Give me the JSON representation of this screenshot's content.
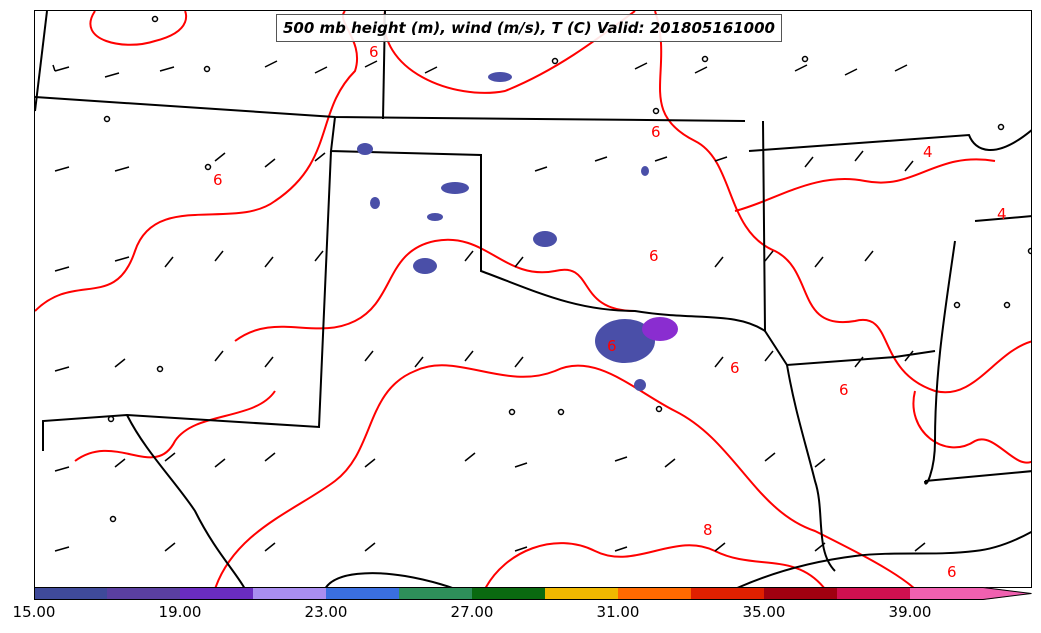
{
  "title": "500 mb height (m), wind (m/s), T (C) Valid: 201805161000",
  "contour_labels": [
    "6",
    "6",
    "6",
    "6",
    "6",
    "6",
    "6",
    "4",
    "4",
    "8",
    "6"
  ],
  "colorbar": {
    "colors": [
      "#3f4a9a",
      "#5a3fa0",
      "#6a2cc0",
      "#a98ef0",
      "#3a6fe0",
      "#2e8f5a",
      "#0a6a10",
      "#f0b800",
      "#ff6a00",
      "#e02000",
      "#a00010",
      "#d01050",
      "#f060b0"
    ],
    "tick_labels": [
      "15.00",
      "19.00",
      "23.00",
      "27.00",
      "31.00",
      "35.00",
      "39.00"
    ]
  },
  "colors": {
    "contour": "#ff0000",
    "state_lines": "#000000",
    "wind_barbs": "#000000"
  }
}
